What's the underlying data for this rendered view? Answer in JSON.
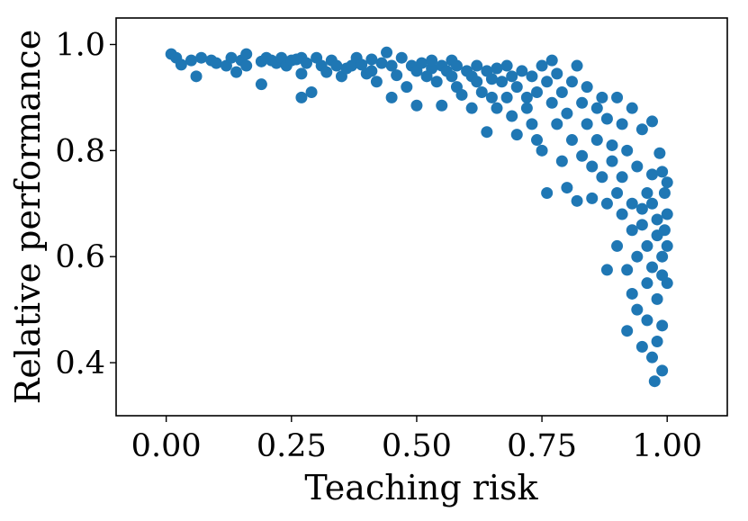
{
  "chart_data": {
    "type": "scatter",
    "xlabel": "Teaching risk",
    "ylabel": "Relative performance",
    "xlim": [
      -0.1,
      1.12
    ],
    "ylim": [
      0.3,
      1.05
    ],
    "xticks": [
      0.0,
      0.25,
      0.5,
      0.75,
      1.0
    ],
    "xtick_labels": [
      "0.00",
      "0.25",
      "0.50",
      "0.75",
      "1.00"
    ],
    "yticks": [
      0.4,
      0.6,
      0.8,
      1.0
    ],
    "ytick_labels": [
      "0.4",
      "0.6",
      "0.8",
      "1.0"
    ],
    "grid": false,
    "legend": "none",
    "marker_color": "#1f77b4",
    "series": [
      {
        "points": [
          [
            0.01,
            0.982
          ],
          [
            0.02,
            0.975
          ],
          [
            0.03,
            0.962
          ],
          [
            0.05,
            0.97
          ],
          [
            0.06,
            0.94
          ],
          [
            0.07,
            0.975
          ],
          [
            0.09,
            0.97
          ],
          [
            0.1,
            0.965
          ],
          [
            0.12,
            0.96
          ],
          [
            0.13,
            0.975
          ],
          [
            0.14,
            0.948
          ],
          [
            0.15,
            0.97
          ],
          [
            0.16,
            0.982
          ],
          [
            0.16,
            0.96
          ],
          [
            0.19,
            0.925
          ],
          [
            0.19,
            0.968
          ],
          [
            0.2,
            0.975
          ],
          [
            0.21,
            0.97
          ],
          [
            0.22,
            0.965
          ],
          [
            0.23,
            0.975
          ],
          [
            0.24,
            0.96
          ],
          [
            0.25,
            0.97
          ],
          [
            0.26,
            0.972
          ],
          [
            0.27,
            0.975
          ],
          [
            0.27,
            0.945
          ],
          [
            0.27,
            0.9
          ],
          [
            0.28,
            0.965
          ],
          [
            0.29,
            0.91
          ],
          [
            0.3,
            0.975
          ],
          [
            0.31,
            0.96
          ],
          [
            0.32,
            0.948
          ],
          [
            0.33,
            0.97
          ],
          [
            0.34,
            0.96
          ],
          [
            0.35,
            0.94
          ],
          [
            0.36,
            0.955
          ],
          [
            0.37,
            0.96
          ],
          [
            0.38,
            0.975
          ],
          [
            0.39,
            0.962
          ],
          [
            0.4,
            0.945
          ],
          [
            0.41,
            0.95
          ],
          [
            0.41,
            0.972
          ],
          [
            0.42,
            0.93
          ],
          [
            0.43,
            0.965
          ],
          [
            0.44,
            0.985
          ],
          [
            0.45,
            0.9
          ],
          [
            0.45,
            0.96
          ],
          [
            0.46,
            0.942
          ],
          [
            0.47,
            0.975
          ],
          [
            0.48,
            0.92
          ],
          [
            0.49,
            0.96
          ],
          [
            0.5,
            0.885
          ],
          [
            0.5,
            0.95
          ],
          [
            0.51,
            0.965
          ],
          [
            0.52,
            0.94
          ],
          [
            0.53,
            0.955
          ],
          [
            0.53,
            0.97
          ],
          [
            0.54,
            0.93
          ],
          [
            0.55,
            0.96
          ],
          [
            0.55,
            0.885
          ],
          [
            0.56,
            0.95
          ],
          [
            0.57,
            0.94
          ],
          [
            0.57,
            0.97
          ],
          [
            0.58,
            0.92
          ],
          [
            0.58,
            0.96
          ],
          [
            0.59,
            0.905
          ],
          [
            0.6,
            0.95
          ],
          [
            0.61,
            0.88
          ],
          [
            0.61,
            0.94
          ],
          [
            0.62,
            0.93
          ],
          [
            0.62,
            0.96
          ],
          [
            0.63,
            0.91
          ],
          [
            0.64,
            0.95
          ],
          [
            0.64,
            0.835
          ],
          [
            0.65,
            0.935
          ],
          [
            0.65,
            0.9
          ],
          [
            0.66,
            0.955
          ],
          [
            0.66,
            0.88
          ],
          [
            0.67,
            0.93
          ],
          [
            0.68,
            0.96
          ],
          [
            0.68,
            0.9
          ],
          [
            0.69,
            0.865
          ],
          [
            0.69,
            0.94
          ],
          [
            0.7,
            0.83
          ],
          [
            0.7,
            0.92
          ],
          [
            0.71,
            0.95
          ],
          [
            0.72,
            0.9
          ],
          [
            0.72,
            0.88
          ],
          [
            0.73,
            0.94
          ],
          [
            0.73,
            0.85
          ],
          [
            0.74,
            0.82
          ],
          [
            0.74,
            0.91
          ],
          [
            0.75,
            0.96
          ],
          [
            0.75,
            0.8
          ],
          [
            0.76,
            0.93
          ],
          [
            0.76,
            0.72
          ],
          [
            0.77,
            0.89
          ],
          [
            0.77,
            0.97
          ],
          [
            0.78,
            0.85
          ],
          [
            0.78,
            0.945
          ],
          [
            0.79,
            0.91
          ],
          [
            0.79,
            0.78
          ],
          [
            0.8,
            0.87
          ],
          [
            0.8,
            0.73
          ],
          [
            0.81,
            0.93
          ],
          [
            0.81,
            0.82
          ],
          [
            0.82,
            0.96
          ],
          [
            0.82,
            0.705
          ],
          [
            0.83,
            0.89
          ],
          [
            0.83,
            0.79
          ],
          [
            0.84,
            0.85
          ],
          [
            0.84,
            0.92
          ],
          [
            0.85,
            0.77
          ],
          [
            0.85,
            0.71
          ],
          [
            0.86,
            0.88
          ],
          [
            0.86,
            0.82
          ],
          [
            0.87,
            0.9
          ],
          [
            0.87,
            0.75
          ],
          [
            0.88,
            0.7
          ],
          [
            0.88,
            0.86
          ],
          [
            0.88,
            0.575
          ],
          [
            0.89,
            0.81
          ],
          [
            0.89,
            0.78
          ],
          [
            0.9,
            0.9
          ],
          [
            0.9,
            0.72
          ],
          [
            0.9,
            0.62
          ],
          [
            0.91,
            0.68
          ],
          [
            0.91,
            0.85
          ],
          [
            0.91,
            0.75
          ],
          [
            0.92,
            0.8
          ],
          [
            0.92,
            0.46
          ],
          [
            0.92,
            0.575
          ],
          [
            0.93,
            0.7
          ],
          [
            0.93,
            0.88
          ],
          [
            0.93,
            0.65
          ],
          [
            0.93,
            0.53
          ],
          [
            0.94,
            0.6
          ],
          [
            0.94,
            0.77
          ],
          [
            0.94,
            0.5
          ],
          [
            0.95,
            0.43
          ],
          [
            0.95,
            0.69
          ],
          [
            0.95,
            0.84
          ],
          [
            0.95,
            0.66
          ],
          [
            0.96,
            0.55
          ],
          [
            0.96,
            0.72
          ],
          [
            0.96,
            0.62
          ],
          [
            0.96,
            0.48
          ],
          [
            0.97,
            0.855
          ],
          [
            0.97,
            0.7
          ],
          [
            0.97,
            0.58
          ],
          [
            0.97,
            0.41
          ],
          [
            0.97,
            0.755
          ],
          [
            0.975,
            0.365
          ],
          [
            0.98,
            0.64
          ],
          [
            0.98,
            0.52
          ],
          [
            0.98,
            0.44
          ],
          [
            0.98,
            0.67
          ],
          [
            0.985,
            0.795
          ],
          [
            0.99,
            0.6
          ],
          [
            0.99,
            0.76
          ],
          [
            0.99,
            0.565
          ],
          [
            0.99,
            0.47
          ],
          [
            0.99,
            0.385
          ],
          [
            0.995,
            0.72
          ],
          [
            0.995,
            0.65
          ],
          [
            1.0,
            0.68
          ],
          [
            1.0,
            0.55
          ],
          [
            1.0,
            0.62
          ],
          [
            1.0,
            0.74
          ]
        ]
      }
    ]
  }
}
